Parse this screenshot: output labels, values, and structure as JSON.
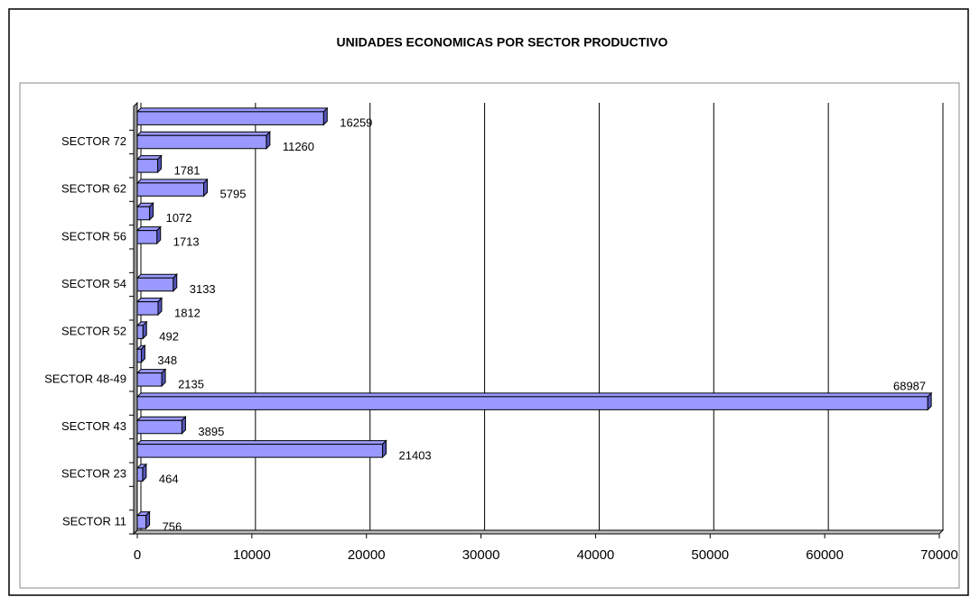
{
  "chart_data": {
    "type": "bar",
    "orientation": "horizontal",
    "title": "UNIDADES ECONOMICAS POR SECTOR PRODUCTIVO",
    "categories": [
      "SECTOR 11",
      null,
      "SECTOR 23",
      null,
      "SECTOR 43",
      null,
      "SECTOR 48-49",
      null,
      "SECTOR 52",
      null,
      "SECTOR 54",
      null,
      "SECTOR 56",
      null,
      "SECTOR 62",
      null,
      "SECTOR 72",
      null
    ],
    "values": [
      756,
      null,
      464,
      21403,
      3895,
      68987,
      2135,
      348,
      492,
      1812,
      3133,
      null,
      1713,
      1072,
      5795,
      1781,
      11260,
      16259
    ],
    "color": "#9999ff",
    "xlim": [
      0,
      70000
    ],
    "xticks": [
      0,
      10000,
      20000,
      30000,
      40000,
      50000,
      60000,
      70000
    ],
    "grid": true
  }
}
